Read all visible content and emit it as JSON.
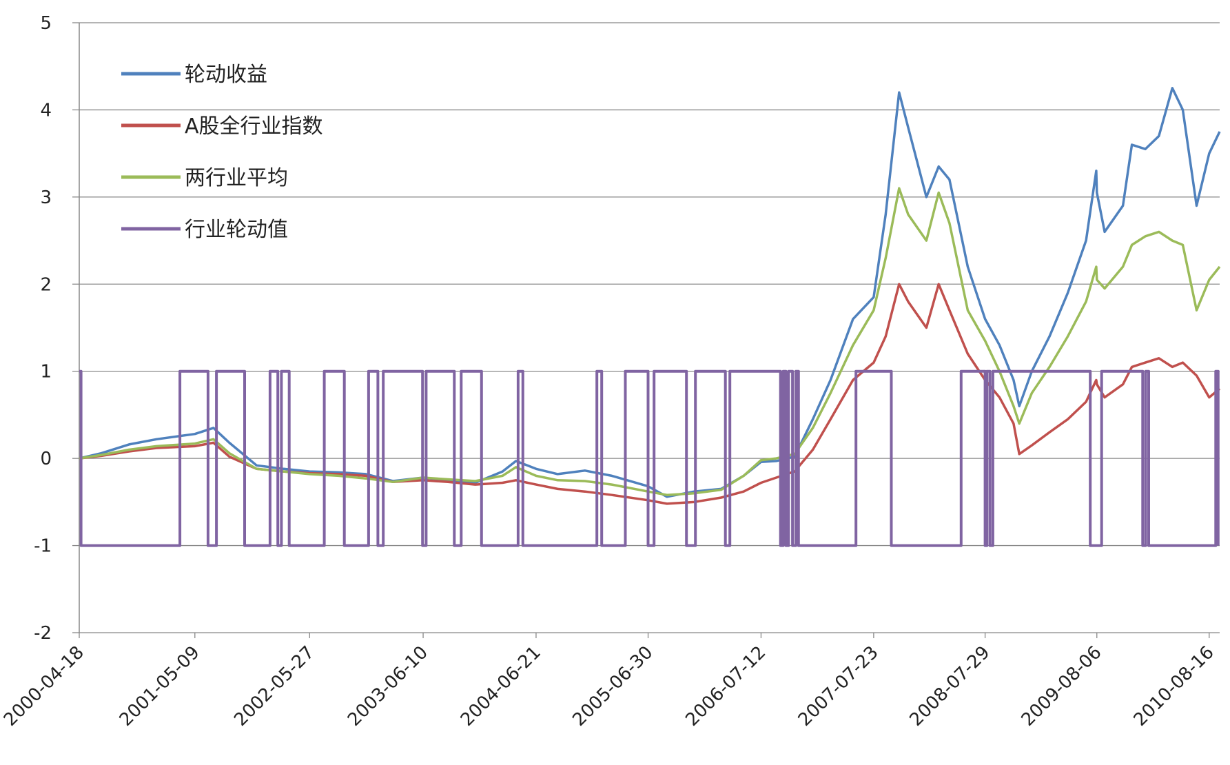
{
  "chart_data": {
    "type": "line",
    "title": "",
    "xlabel": "",
    "ylabel": "",
    "ylim": [
      -2,
      5
    ],
    "yticks": [
      -2,
      -1,
      0,
      1,
      2,
      3,
      4,
      5
    ],
    "xlim": [
      "2000-04-18",
      "2010-09-20"
    ],
    "xtick_labels": [
      "2000-04-18",
      "2001-05-09",
      "2002-05-27",
      "2003-06-10",
      "2004-06-21",
      "2005-06-30",
      "2006-07-12",
      "2007-07-23",
      "2008-07-29",
      "2009-08-06",
      "2010-08-16"
    ],
    "grid": "horizontal",
    "legend_position": "top-left",
    "series": [
      {
        "name": "轮动收益",
        "color": "#4F81BD",
        "x": [
          "2000-04-18",
          "2000-07-01",
          "2000-10-01",
          "2001-01-01",
          "2001-05-09",
          "2001-07-10",
          "2001-09-01",
          "2001-12-01",
          "2002-03-01",
          "2002-05-27",
          "2002-09-01",
          "2002-12-01",
          "2003-03-01",
          "2003-06-10",
          "2003-09-01",
          "2003-12-01",
          "2004-03-01",
          "2004-04-15",
          "2004-06-21",
          "2004-09-01",
          "2004-12-01",
          "2005-03-01",
          "2005-06-30",
          "2005-09-01",
          "2005-12-01",
          "2006-03-01",
          "2006-05-15",
          "2006-07-12",
          "2006-09-01",
          "2006-11-01",
          "2007-01-01",
          "2007-03-01",
          "2007-05-15",
          "2007-07-23",
          "2007-09-01",
          "2007-10-16",
          "2007-11-15",
          "2008-01-15",
          "2008-02-25",
          "2008-04-01",
          "2008-06-01",
          "2008-07-29",
          "2008-09-15",
          "2008-11-01",
          "2008-11-20",
          "2009-01-01",
          "2009-03-01",
          "2009-05-01",
          "2009-07-01",
          "2009-08-04",
          "2009-08-06",
          "2009-09-01",
          "2009-11-01",
          "2009-12-01",
          "2010-01-15",
          "2010-03-01",
          "2010-04-15",
          "2010-05-20",
          "2010-07-05",
          "2010-08-16",
          "2010-09-20"
        ],
        "values": [
          0,
          0.06,
          0.16,
          0.22,
          0.28,
          0.35,
          0.18,
          -0.08,
          -0.12,
          -0.15,
          -0.16,
          -0.18,
          -0.26,
          -0.22,
          -0.25,
          -0.28,
          -0.15,
          -0.03,
          -0.12,
          -0.18,
          -0.14,
          -0.2,
          -0.32,
          -0.44,
          -0.38,
          -0.35,
          -0.2,
          -0.04,
          -0.03,
          0.02,
          0.45,
          0.9,
          1.6,
          1.85,
          2.8,
          4.2,
          3.8,
          3.0,
          3.35,
          3.2,
          2.2,
          1.6,
          1.3,
          0.9,
          0.6,
          1.0,
          1.4,
          1.9,
          2.5,
          3.3,
          3.05,
          2.6,
          2.9,
          3.6,
          3.55,
          3.7,
          4.25,
          4.0,
          2.9,
          3.5,
          3.75
        ]
      },
      {
        "name": "A股全行业指数",
        "color": "#C0504D",
        "x": [
          "2000-04-18",
          "2000-07-01",
          "2000-10-01",
          "2001-01-01",
          "2001-05-09",
          "2001-07-10",
          "2001-09-01",
          "2001-12-01",
          "2002-03-01",
          "2002-05-27",
          "2002-09-01",
          "2002-12-01",
          "2003-03-01",
          "2003-06-10",
          "2003-09-01",
          "2003-12-01",
          "2004-03-01",
          "2004-04-15",
          "2004-06-21",
          "2004-09-01",
          "2004-12-01",
          "2005-03-01",
          "2005-06-30",
          "2005-09-01",
          "2005-12-01",
          "2006-03-01",
          "2006-05-15",
          "2006-07-12",
          "2006-09-01",
          "2006-11-01",
          "2007-01-01",
          "2007-03-01",
          "2007-05-15",
          "2007-07-23",
          "2007-09-01",
          "2007-10-16",
          "2007-11-15",
          "2008-01-15",
          "2008-02-25",
          "2008-04-01",
          "2008-06-01",
          "2008-07-29",
          "2008-09-15",
          "2008-11-01",
          "2008-11-20",
          "2009-01-01",
          "2009-03-01",
          "2009-05-01",
          "2009-07-01",
          "2009-08-04",
          "2009-08-06",
          "2009-09-01",
          "2009-11-01",
          "2009-12-01",
          "2010-01-15",
          "2010-03-01",
          "2010-04-15",
          "2010-05-20",
          "2010-07-05",
          "2010-08-16",
          "2010-09-20"
        ],
        "values": [
          0,
          0.03,
          0.08,
          0.12,
          0.14,
          0.18,
          0.02,
          -0.12,
          -0.15,
          -0.17,
          -0.18,
          -0.2,
          -0.27,
          -0.25,
          -0.27,
          -0.3,
          -0.28,
          -0.25,
          -0.3,
          -0.35,
          -0.38,
          -0.42,
          -0.48,
          -0.52,
          -0.5,
          -0.45,
          -0.38,
          -0.28,
          -0.22,
          -0.15,
          0.1,
          0.45,
          0.9,
          1.1,
          1.4,
          2.0,
          1.8,
          1.5,
          2.0,
          1.7,
          1.2,
          0.9,
          0.7,
          0.4,
          0.05,
          0.15,
          0.3,
          0.45,
          0.65,
          0.9,
          0.85,
          0.7,
          0.85,
          1.05,
          1.1,
          1.15,
          1.05,
          1.1,
          0.95,
          0.7,
          0.8
        ]
      },
      {
        "name": "两行业平均",
        "color": "#9BBB59",
        "x": [
          "2000-04-18",
          "2000-07-01",
          "2000-10-01",
          "2001-01-01",
          "2001-05-09",
          "2001-07-10",
          "2001-09-01",
          "2001-12-01",
          "2002-03-01",
          "2002-05-27",
          "2002-09-01",
          "2002-12-01",
          "2003-03-01",
          "2003-06-10",
          "2003-09-01",
          "2003-12-01",
          "2004-03-01",
          "2004-04-15",
          "2004-06-21",
          "2004-09-01",
          "2004-12-01",
          "2005-03-01",
          "2005-06-30",
          "2005-09-01",
          "2005-12-01",
          "2006-03-01",
          "2006-05-15",
          "2006-07-12",
          "2006-09-01",
          "2006-11-01",
          "2007-01-01",
          "2007-03-01",
          "2007-05-15",
          "2007-07-23",
          "2007-09-01",
          "2007-10-16",
          "2007-11-15",
          "2008-01-15",
          "2008-02-25",
          "2008-04-01",
          "2008-06-01",
          "2008-07-29",
          "2008-09-15",
          "2008-11-01",
          "2008-11-20",
          "2009-01-01",
          "2009-03-01",
          "2009-05-01",
          "2009-07-01",
          "2009-08-04",
          "2009-08-06",
          "2009-09-01",
          "2009-11-01",
          "2009-12-01",
          "2010-01-15",
          "2010-03-01",
          "2010-04-15",
          "2010-05-20",
          "2010-07-05",
          "2010-08-16",
          "2010-09-20"
        ],
        "values": [
          0,
          0.04,
          0.1,
          0.14,
          0.17,
          0.22,
          0.06,
          -0.12,
          -0.15,
          -0.18,
          -0.2,
          -0.23,
          -0.27,
          -0.22,
          -0.24,
          -0.26,
          -0.2,
          -0.1,
          -0.2,
          -0.25,
          -0.26,
          -0.3,
          -0.38,
          -0.42,
          -0.4,
          -0.36,
          -0.2,
          -0.02,
          0.0,
          0.05,
          0.35,
          0.75,
          1.3,
          1.7,
          2.3,
          3.1,
          2.8,
          2.5,
          3.05,
          2.7,
          1.7,
          1.35,
          1.0,
          0.6,
          0.4,
          0.75,
          1.05,
          1.4,
          1.8,
          2.2,
          2.05,
          1.95,
          2.2,
          2.45,
          2.55,
          2.6,
          2.5,
          2.45,
          1.7,
          2.05,
          2.2
        ]
      },
      {
        "name": "行业轮动值",
        "color": "#8064A2",
        "step": true,
        "x": [
          "2000-04-18",
          "2000-04-24",
          "2001-03-20",
          "2001-06-22",
          "2001-07-20",
          "2001-10-22",
          "2002-01-15",
          "2002-02-10",
          "2002-02-22",
          "2002-03-20",
          "2002-07-15",
          "2002-09-20",
          "2002-12-10",
          "2003-01-10",
          "2003-01-28",
          "2003-06-08",
          "2003-06-20",
          "2003-09-22",
          "2003-10-15",
          "2003-12-22",
          "2004-04-22",
          "2004-05-08",
          "2005-01-10",
          "2005-01-26",
          "2005-04-15",
          "2005-06-30",
          "2005-07-20",
          "2005-11-05",
          "2005-12-05",
          "2006-03-15",
          "2006-03-30",
          "2006-09-15",
          "2006-09-24",
          "2006-10-03",
          "2006-10-12",
          "2006-10-25",
          "2006-11-05",
          "2006-11-14",
          "2007-05-25",
          "2007-09-20",
          "2008-05-10",
          "2008-07-29",
          "2008-08-04",
          "2008-08-14",
          "2008-08-24",
          "2009-07-15",
          "2009-08-22",
          "2010-01-06",
          "2010-01-16",
          "2010-01-26",
          "2010-09-07",
          "2010-09-15"
        ],
        "values": [
          1,
          -1,
          1,
          -1,
          1,
          -1,
          1,
          -1,
          1,
          -1,
          1,
          -1,
          1,
          -1,
          1,
          -1,
          1,
          -1,
          1,
          -1,
          1,
          -1,
          1,
          -1,
          1,
          -1,
          1,
          -1,
          1,
          -1,
          1,
          -1,
          1,
          -1,
          1,
          -1,
          1,
          -1,
          1,
          -1,
          1,
          -1,
          1,
          -1,
          1,
          -1,
          1,
          -1,
          1,
          -1,
          1,
          -1
        ]
      }
    ]
  }
}
